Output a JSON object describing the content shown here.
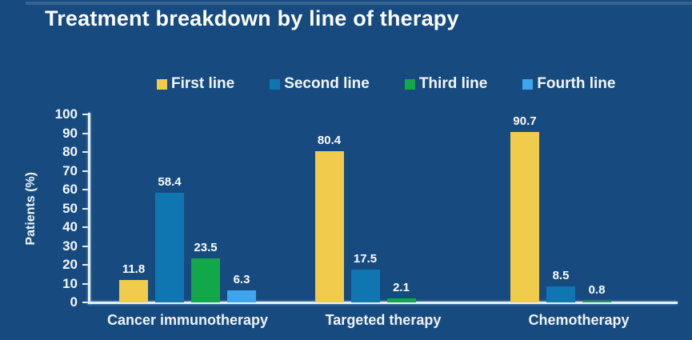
{
  "title": "Treatment breakdown by line of therapy",
  "colors": {
    "background": "#174a7e",
    "axis": "#e9f0f8",
    "text": "#ffffff",
    "first_line": "#f0cb4c",
    "second_line": "#0f76b2",
    "third_line": "#12a849",
    "fourth_line": "#3fa5ef"
  },
  "chart_data": {
    "type": "bar",
    "title": "Treatment breakdown by line of therapy",
    "categories": [
      "Cancer immunotherapy",
      "Targeted therapy",
      "Chemotherapy"
    ],
    "series": [
      {
        "name": "First line",
        "color": "#f0cb4c",
        "values": [
          11.8,
          80.4,
          90.7
        ]
      },
      {
        "name": "Second line",
        "color": "#0f76b2",
        "values": [
          58.4,
          17.5,
          8.5
        ]
      },
      {
        "name": "Third line",
        "color": "#12a849",
        "values": [
          23.5,
          2.1,
          0.8
        ]
      },
      {
        "name": "Fourth line",
        "color": "#3fa5ef",
        "values": [
          6.3,
          null,
          null
        ]
      }
    ],
    "ylabel": "Patients (%)",
    "ylim": [
      0,
      100
    ],
    "ytick_step": 10,
    "legend_position": "top",
    "grid": false,
    "value_labels": true
  }
}
